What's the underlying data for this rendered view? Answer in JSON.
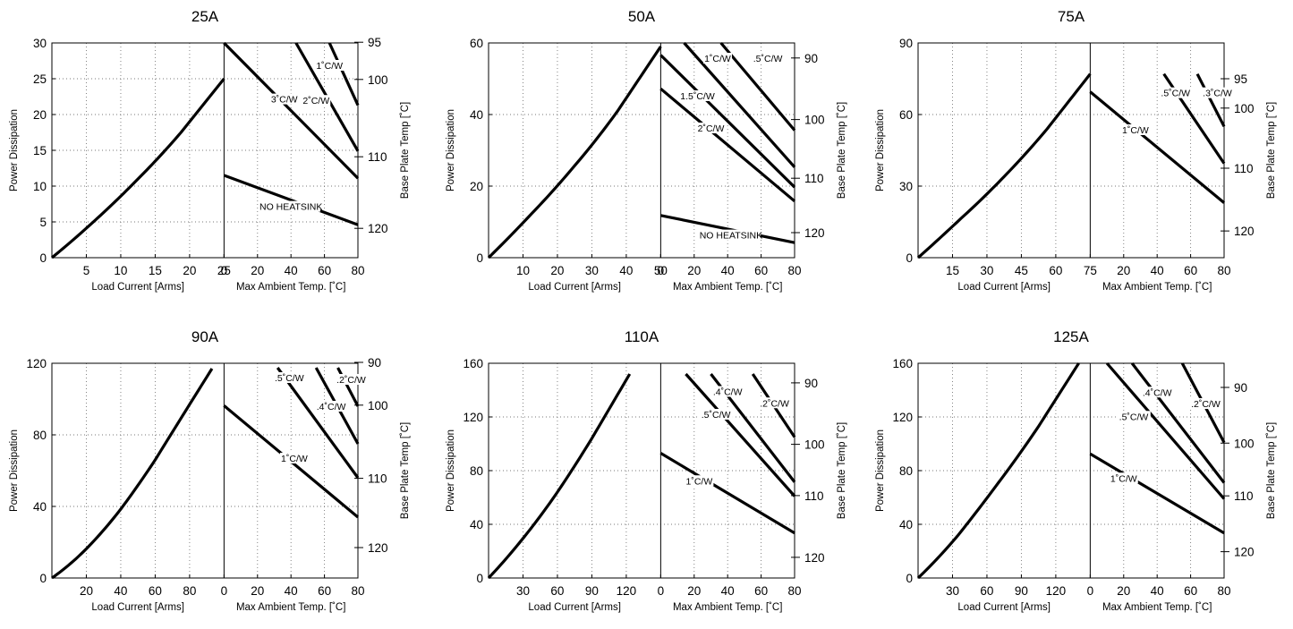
{
  "chart_data": [
    {
      "type": "line",
      "title": "25A",
      "left_ylabel": "Power Dissipation",
      "right_ylabel": "Base Plate Temp [˚C]",
      "left_xlabel": "Load Current  [Arms]",
      "right_xlabel": "Max Ambient Temp. [˚C]",
      "ylim": [
        0,
        30
      ],
      "yticks": [
        0,
        5,
        10,
        15,
        20,
        25,
        30
      ],
      "left_xlim": [
        0,
        25
      ],
      "left_xticks": [
        5,
        10,
        15,
        20,
        25
      ],
      "right_xlim": [
        0,
        80
      ],
      "right_xticks": [
        0,
        20,
        40,
        60,
        80
      ],
      "right_yticks": [
        {
          "label": "95",
          "y": 30.1
        },
        {
          "label": "100",
          "y": 24.9
        },
        {
          "label": "110",
          "y": 14.1
        },
        {
          "label": "120",
          "y": 4.1
        }
      ],
      "grid": true,
      "load_curve": [
        [
          0,
          0
        ],
        [
          6.25,
          5.2
        ],
        [
          12.5,
          11.0
        ],
        [
          18.75,
          17.5
        ],
        [
          25,
          25
        ]
      ],
      "series": [
        {
          "label": "NO HEATSINK",
          "points": [
            [
              0,
              11.5
            ],
            [
              80,
              4.6
            ]
          ]
        },
        {
          "label": "3˚C/W",
          "points": [
            [
              0,
              30
            ],
            [
              80,
              11.1
            ]
          ]
        },
        {
          "label": "2˚C/W",
          "points": [
            [
              43,
              30
            ],
            [
              80,
              14.9
            ]
          ]
        },
        {
          "label": "1˚C/W",
          "points": [
            [
              63,
              30
            ],
            [
              80,
              21.3
            ]
          ]
        }
      ],
      "curve_labels": [
        {
          "text": "1˚C/W",
          "x": 63,
          "y": 26.5
        },
        {
          "text": "3˚C/W",
          "x": 36,
          "y": 21.8
        },
        {
          "text": "2˚C/W",
          "x": 55,
          "y": 21.6
        },
        {
          "text": "NO HEATSINK",
          "x": 40,
          "y": 6.8
        }
      ]
    },
    {
      "type": "line",
      "title": "50A",
      "left_ylabel": "Power Dissipation",
      "right_ylabel": "Base Plate Temp [˚C]",
      "left_xlabel": "Load Current  [Arms]",
      "right_xlabel": "Max Ambient Temp. [˚C]",
      "ylim": [
        0,
        60
      ],
      "yticks": [
        0,
        20,
        40,
        60
      ],
      "left_xlim": [
        0,
        50
      ],
      "left_xticks": [
        10,
        20,
        30,
        40,
        50
      ],
      "right_xlim": [
        0,
        80
      ],
      "right_xticks": [
        0,
        20,
        40,
        60,
        80
      ],
      "right_yticks": [
        {
          "label": "90",
          "y": 55.8
        },
        {
          "label": "100",
          "y": 38.6
        },
        {
          "label": "110",
          "y": 22.2
        },
        {
          "label": "120",
          "y": 7.0
        }
      ],
      "grid": true,
      "load_curve": [
        [
          0,
          0
        ],
        [
          12.5,
          12.3
        ],
        [
          25,
          25.7
        ],
        [
          37.5,
          41.0
        ],
        [
          50,
          59
        ]
      ],
      "series": [
        {
          "label": "NO HEATSINK",
          "points": [
            [
              0,
              11.8
            ],
            [
              80,
              4.2
            ]
          ]
        },
        {
          "label": "2˚C/W",
          "points": [
            [
              0,
              47.2
            ],
            [
              80,
              15.8
            ]
          ]
        },
        {
          "label": "1.5˚C/W",
          "points": [
            [
              0,
              56.6
            ],
            [
              80,
              19.7
            ]
          ]
        },
        {
          "label": "1˚C/W",
          "points": [
            [
              14,
              60
            ],
            [
              80,
              25.3
            ]
          ]
        },
        {
          "label": ".5˚C/W",
          "points": [
            [
              36,
              60
            ],
            [
              80,
              35.6
            ]
          ]
        }
      ],
      "curve_labels": [
        {
          "text": "1˚C/W",
          "x": 34,
          "y": 55.0
        },
        {
          "text": ".5˚C/W",
          "x": 64,
          "y": 55.0
        },
        {
          "text": "1.5˚C/W",
          "x": 22,
          "y": 44.5
        },
        {
          "text": "2˚C/W",
          "x": 30,
          "y": 35.5
        },
        {
          "text": "NO HEATSINK",
          "x": 42,
          "y": 5.6
        }
      ]
    },
    {
      "type": "line",
      "title": "75A",
      "left_ylabel": "Power Dissipation",
      "right_ylabel": "Base Plate Temp [˚C]",
      "left_xlabel": "Load Current  [Arms]",
      "right_xlabel": "Max Ambient Temp. [˚C]",
      "ylim": [
        0,
        90
      ],
      "yticks": [
        0,
        30,
        60,
        90
      ],
      "left_xlim": [
        0,
        75
      ],
      "left_xticks": [
        15,
        30,
        45,
        60,
        75
      ],
      "right_xlim": [
        0,
        80
      ],
      "right_xticks": [
        20,
        40,
        60,
        80
      ],
      "right_yticks": [
        {
          "label": "95",
          "y": 75.0
        },
        {
          "label": "100",
          "y": 62.7
        },
        {
          "label": "110",
          "y": 37.5
        },
        {
          "label": "120",
          "y": 11.2
        }
      ],
      "grid": true,
      "load_curve": [
        [
          0,
          0
        ],
        [
          18.75,
          16.5
        ],
        [
          37.5,
          34.0
        ],
        [
          56.25,
          54.0
        ],
        [
          75,
          77
        ]
      ],
      "series": [
        {
          "label": "1˚C/W",
          "points": [
            [
              0,
              69.5
            ],
            [
              80,
              23.0
            ]
          ]
        },
        {
          "label": ".5˚C/W",
          "points": [
            [
              44,
              77
            ],
            [
              80,
              39.5
            ]
          ]
        },
        {
          "label": ".3˚C/W",
          "points": [
            [
              64,
              77
            ],
            [
              80,
              55.0
            ]
          ]
        }
      ],
      "curve_labels": [
        {
          "text": ".5˚C/W",
          "x": 51,
          "y": 68.0
        },
        {
          "text": ".3˚C/W",
          "x": 76,
          "y": 68.0
        },
        {
          "text": "1˚C/W",
          "x": 27,
          "y": 52.5
        }
      ]
    },
    {
      "type": "line",
      "title": "90A",
      "left_ylabel": "Power Dissipation",
      "right_ylabel": "Base Plate Temp [˚C]",
      "left_xlabel": "Load Current  [Arms]",
      "right_xlabel": "Max Ambient Temp. [˚C]",
      "ylim": [
        0,
        120
      ],
      "yticks": [
        0,
        40,
        80,
        120
      ],
      "left_xlim": [
        0,
        100
      ],
      "left_xticks": [
        20,
        40,
        60,
        80
      ],
      "right_xlim": [
        0,
        80
      ],
      "right_xticks": [
        0,
        20,
        40,
        60,
        80
      ],
      "right_yticks": [
        {
          "label": "90",
          "y": 120.5
        },
        {
          "label": "100",
          "y": 96.6
        },
        {
          "label": "110",
          "y": 55.7
        },
        {
          "label": "120",
          "y": 17.0
        }
      ],
      "grid": true,
      "load_curve": [
        [
          0,
          0
        ],
        [
          20,
          16.3
        ],
        [
          40,
          38.5
        ],
        [
          60,
          66.0
        ],
        [
          80,
          97.0
        ],
        [
          93,
          117.0
        ]
      ],
      "series": [
        {
          "label": "1˚C/W",
          "points": [
            [
              0,
              96.3
            ],
            [
              80,
              34.0
            ]
          ]
        },
        {
          "label": ".5˚C/W",
          "points": [
            [
              32,
              117.5
            ],
            [
              80,
              56.0
            ]
          ]
        },
        {
          "label": ".4˚C/W",
          "points": [
            [
              55,
              117.5
            ],
            [
              80,
              75.0
            ]
          ]
        },
        {
          "label": ".2˚C/W",
          "points": [
            [
              68,
              117.5
            ],
            [
              80,
              96.0
            ]
          ]
        }
      ],
      "curve_labels": [
        {
          "text": ".5˚C/W",
          "x": 39,
          "y": 110.5
        },
        {
          "text": ".2˚C/W",
          "x": 76,
          "y": 109.5
        },
        {
          "text": ".4˚C/W",
          "x": 64,
          "y": 94.5
        },
        {
          "text": "1˚C/W",
          "x": 42,
          "y": 65.5
        }
      ]
    },
    {
      "type": "line",
      "title": "110A",
      "left_ylabel": "Power Dissipation",
      "right_ylabel": "Base Plate Temp [˚C]",
      "left_xlabel": "Load Current  [Arms]",
      "right_xlabel": "Max Ambient Temp. [˚C]",
      "ylim": [
        0,
        160
      ],
      "yticks": [
        0,
        40,
        80,
        120,
        160
      ],
      "left_xlim": [
        0,
        150
      ],
      "left_xticks": [
        30,
        60,
        90,
        120
      ],
      "right_xlim": [
        0,
        80
      ],
      "right_xticks": [
        0,
        20,
        40,
        60,
        80
      ],
      "right_yticks": [
        {
          "label": "90",
          "y": 145.4
        },
        {
          "label": "100",
          "y": 99.6
        },
        {
          "label": "110",
          "y": 61.4
        },
        {
          "label": "120",
          "y": 15.4
        }
      ],
      "grid": true,
      "load_curve": [
        [
          0,
          0
        ],
        [
          30,
          29.5
        ],
        [
          60,
          64.0
        ],
        [
          90,
          104.0
        ],
        [
          123,
          152.0
        ]
      ],
      "series": [
        {
          "label": "1˚C/W",
          "points": [
            [
              0,
              93.0
            ],
            [
              80,
              33.5
            ]
          ]
        },
        {
          "label": ".5˚C/W",
          "points": [
            [
              15,
              152.0
            ],
            [
              80,
              61.0
            ]
          ]
        },
        {
          "label": ".4˚C/W",
          "points": [
            [
              30,
              152.0
            ],
            [
              80,
              71.5
            ]
          ]
        },
        {
          "label": ".2˚C/W",
          "points": [
            [
              55,
              152.0
            ],
            [
              80,
              105.0
            ]
          ]
        }
      ],
      "curve_labels": [
        {
          "text": ".4˚C/W",
          "x": 40,
          "y": 137.0
        },
        {
          "text": ".2˚C/W",
          "x": 68,
          "y": 128.5
        },
        {
          "text": ".5˚C/W",
          "x": 33,
          "y": 120.0
        },
        {
          "text": "1˚C/W",
          "x": 23,
          "y": 70.5
        }
      ]
    },
    {
      "type": "line",
      "title": "125A",
      "left_ylabel": "Power Dissipation",
      "right_ylabel": "Base Plate Temp [˚C]",
      "left_xlabel": "Load Current  [Arms]",
      "right_xlabel": "Max Ambient Temp. [˚C]",
      "ylim": [
        0,
        160
      ],
      "yticks": [
        0,
        40,
        80,
        120,
        160
      ],
      "left_xlim": [
        0,
        150
      ],
      "left_xticks": [
        30,
        60,
        90,
        120
      ],
      "right_xlim": [
        0,
        80
      ],
      "right_xticks": [
        0,
        20,
        40,
        60,
        80
      ],
      "right_yticks": [
        {
          "label": "90",
          "y": 142.0
        },
        {
          "label": "100",
          "y": 100.5
        },
        {
          "label": "110",
          "y": 61.2
        },
        {
          "label": "120",
          "y": 19.6
        }
      ],
      "grid": true,
      "load_curve": [
        [
          0,
          0
        ],
        [
          35,
          32.0
        ],
        [
          70,
          71.0
        ],
        [
          105,
          113.0
        ],
        [
          140,
          160.0
        ]
      ],
      "series": [
        {
          "label": "1˚C/W",
          "points": [
            [
              0,
              92.5
            ],
            [
              80,
              33.5
            ]
          ]
        },
        {
          "label": ".5˚C/W",
          "points": [
            [
              10,
              160.0
            ],
            [
              80,
              59.0
            ]
          ]
        },
        {
          "label": ".4˚C/W",
          "points": [
            [
              25,
              160.0
            ],
            [
              80,
              71.0
            ]
          ]
        },
        {
          "label": ".2˚C/W",
          "points": [
            [
              55,
              160.0
            ],
            [
              80,
              101.0
            ]
          ]
        }
      ],
      "curve_labels": [
        {
          "text": ".4˚C/W",
          "x": 40,
          "y": 136.5
        },
        {
          "text": ".2˚C/W",
          "x": 69,
          "y": 128.0
        },
        {
          "text": ".5˚C/W",
          "x": 26,
          "y": 118.5
        },
        {
          "text": "1˚C/W",
          "x": 20,
          "y": 72.5
        }
      ]
    }
  ]
}
